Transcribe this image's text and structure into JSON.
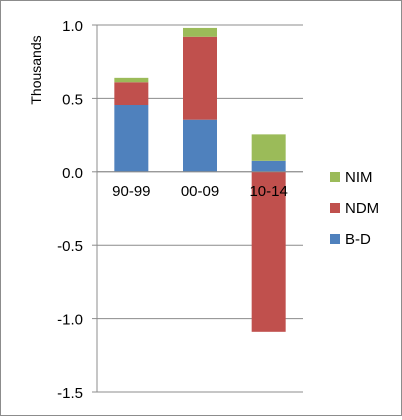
{
  "chart_data": {
    "type": "bar",
    "stacked": true,
    "ylabel": "Thousands",
    "ylim": [
      -1.5,
      1.0
    ],
    "yticks": [
      1.0,
      0.5,
      0.0,
      -0.5,
      -1.0,
      -1.5
    ],
    "ytick_labels": [
      "1.0",
      "0.5",
      "0.0",
      "-0.5",
      "-1.0",
      "-1.5"
    ],
    "grid": true,
    "legend_position": "right",
    "categories": [
      "90-99",
      "00-09",
      "10-14"
    ],
    "series": [
      {
        "name": "B-D",
        "color": "#4f81bd",
        "values": [
          0.455,
          0.355,
          0.075
        ]
      },
      {
        "name": "NDM",
        "color": "#c0504d",
        "values": [
          0.155,
          0.565,
          -1.09
        ]
      },
      {
        "name": "NIM",
        "color": "#9bbb59",
        "values": [
          0.03,
          0.06,
          0.18
        ]
      }
    ],
    "legend_order": [
      "NIM",
      "NDM",
      "B-D"
    ]
  }
}
